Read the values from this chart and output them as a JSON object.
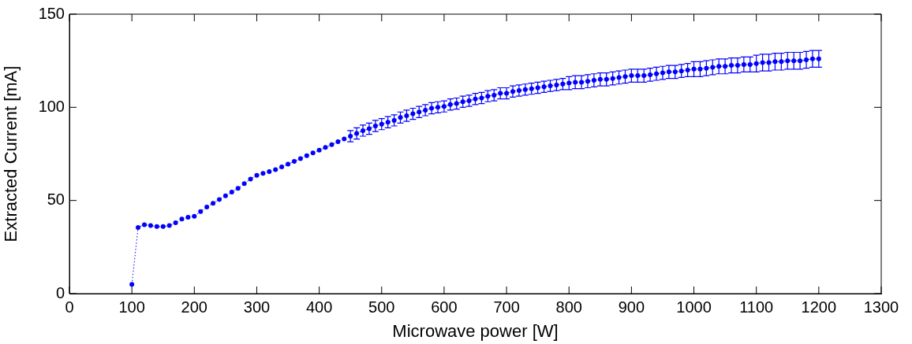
{
  "chart_data": {
    "type": "line",
    "xlabel": "Microwave power [W]",
    "ylabel": "Extracted Current [mA]",
    "x": [
      100,
      110,
      120,
      130,
      140,
      150,
      160,
      170,
      180,
      190,
      200,
      210,
      220,
      230,
      240,
      250,
      260,
      270,
      280,
      290,
      300,
      310,
      320,
      330,
      340,
      350,
      360,
      370,
      380,
      390,
      400,
      410,
      420,
      430,
      440,
      450,
      460,
      470,
      480,
      490,
      500,
      510,
      520,
      530,
      540,
      550,
      560,
      570,
      580,
      590,
      600,
      610,
      620,
      630,
      640,
      650,
      660,
      670,
      680,
      690,
      700,
      710,
      720,
      730,
      740,
      750,
      760,
      770,
      780,
      790,
      800,
      810,
      820,
      830,
      840,
      850,
      860,
      870,
      880,
      890,
      900,
      910,
      920,
      930,
      940,
      950,
      960,
      970,
      980,
      990,
      1000,
      1010,
      1020,
      1030,
      1040,
      1050,
      1060,
      1070,
      1080,
      1090,
      1100,
      1110,
      1120,
      1130,
      1140,
      1150,
      1160,
      1170,
      1180,
      1190,
      1200
    ],
    "series": [
      {
        "color": "#0000ff",
        "values": [
          5,
          35.5,
          37,
          36.5,
          36,
          36,
          36.5,
          38,
          40,
          41,
          41.5,
          44,
          46.5,
          48.5,
          50.5,
          52.5,
          54.5,
          56.5,
          59,
          61.5,
          63.5,
          64.5,
          65.5,
          66.5,
          68,
          69.5,
          71,
          72.5,
          74,
          75.5,
          77,
          78.5,
          80,
          81.5,
          83,
          84.5,
          86,
          87.5,
          88.5,
          90,
          91,
          92,
          93,
          94.5,
          95.5,
          96.5,
          97.5,
          98.5,
          99.5,
          100,
          100.5,
          101.5,
          102,
          103,
          103.5,
          104.5,
          105,
          106,
          106.5,
          107.5,
          107.5,
          108.5,
          109,
          109.5,
          110,
          110.5,
          111,
          111.5,
          112,
          112.5,
          113,
          113.5,
          113.5,
          114,
          114.5,
          115,
          115,
          115.5,
          116,
          116.5,
          117,
          117,
          117,
          117.5,
          118,
          118.5,
          119,
          119,
          119.5,
          120,
          120.5,
          120.5,
          121,
          121.5,
          122,
          122,
          122.5,
          122.5,
          123,
          123,
          123.5,
          124,
          124,
          124.5,
          124.5,
          125,
          125,
          125,
          125.5,
          126,
          126
        ],
        "errors": [
          null,
          null,
          null,
          null,
          null,
          null,
          null,
          null,
          null,
          null,
          null,
          null,
          null,
          null,
          null,
          null,
          null,
          null,
          null,
          null,
          null,
          null,
          null,
          null,
          null,
          null,
          null,
          null,
          null,
          null,
          null,
          null,
          null,
          null,
          null,
          3,
          3,
          3,
          3,
          3,
          3,
          3,
          3,
          3,
          3,
          3,
          3,
          3,
          3,
          3,
          3,
          3,
          3,
          3,
          3,
          3,
          3,
          3,
          3,
          3,
          3,
          3,
          3,
          3,
          3,
          3,
          3,
          3,
          3,
          3,
          3.5,
          3.5,
          3.5,
          3.5,
          3.5,
          3.5,
          3.5,
          3.5,
          3.5,
          3.5,
          3.5,
          3.5,
          3.5,
          3.5,
          3.5,
          3.5,
          3.5,
          3.5,
          3.5,
          3.5,
          4,
          4,
          4,
          4,
          4,
          4,
          4,
          4,
          4,
          4,
          4.5,
          4.5,
          4.5,
          4.5,
          4.5,
          4.5,
          4.5,
          4.5,
          4.5,
          4.5,
          4.5
        ]
      }
    ],
    "xlim": [
      0,
      1300
    ],
    "xticks": [
      0,
      100,
      200,
      300,
      400,
      500,
      600,
      700,
      800,
      900,
      1000,
      1100,
      1200,
      1300
    ],
    "ylim": [
      0,
      150
    ],
    "yticks": [
      0,
      50,
      100,
      150
    ],
    "marker": "circle",
    "line_style": "dotted",
    "grid": false,
    "legend": false
  }
}
